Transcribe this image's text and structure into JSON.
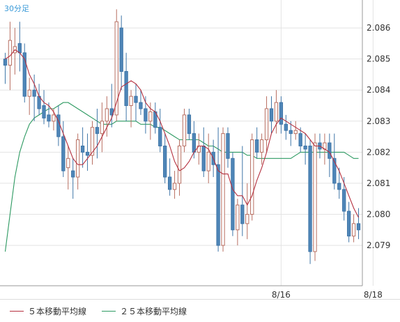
{
  "chart_data": {
    "type": "candlestick",
    "timeframe_label": "30分足",
    "y_ticks": [
      "2.086",
      "2.085",
      "2.084",
      "2.083",
      "2.082",
      "2.081",
      "2.080",
      "2.079"
    ],
    "y_tick_values": [
      2.086,
      2.085,
      2.084,
      2.083,
      2.082,
      2.081,
      2.08,
      2.079
    ],
    "ylim": [
      2.0777,
      2.0869
    ],
    "x_ticks": [
      {
        "label": "8/16",
        "index": 57
      },
      {
        "label": "8/18",
        "index": 76
      }
    ],
    "colors": {
      "up": "#c98b7f",
      "down": "#4f86b8",
      "ma5": "#b5303f",
      "ma25": "#2e9a62",
      "grid": "#e3e3e3",
      "axis": "#999999"
    },
    "legend": [
      {
        "label": "５本移動平均線",
        "color": "#b5303f"
      },
      {
        "label": "２５本移動平均線",
        "color": "#2e9a62"
      }
    ],
    "candles": [
      [
        2.085,
        2.0852,
        2.0842,
        2.0848
      ],
      [
        2.0848,
        2.0862,
        2.084,
        2.0856
      ],
      [
        2.0852,
        2.086,
        2.0845,
        2.0854
      ],
      [
        2.0855,
        2.0862,
        2.0846,
        2.0852
      ],
      [
        2.0852,
        2.0855,
        2.0836,
        2.0838
      ],
      [
        2.0838,
        2.0844,
        2.0832,
        2.084
      ],
      [
        2.084,
        2.0845,
        2.083,
        2.0838
      ],
      [
        2.0838,
        2.0842,
        2.0832,
        2.0834
      ],
      [
        2.0835,
        2.084,
        2.0829,
        2.0831
      ],
      [
        2.0832,
        2.0836,
        2.0828,
        2.083
      ],
      [
        2.083,
        2.0834,
        2.0827,
        2.0832
      ],
      [
        2.0832,
        2.0835,
        2.0822,
        2.0825
      ],
      [
        2.0825,
        2.083,
        2.0812,
        2.0814
      ],
      [
        2.0815,
        2.0822,
        2.0808,
        2.0818
      ],
      [
        2.0814,
        2.0818,
        2.0805,
        2.0812
      ],
      [
        2.0812,
        2.0826,
        2.0808,
        2.0824
      ],
      [
        2.0822,
        2.0828,
        2.0815,
        2.082
      ],
      [
        2.082,
        2.0826,
        2.0814,
        2.0819
      ],
      [
        2.0819,
        2.083,
        2.0816,
        2.0828
      ],
      [
        2.0828,
        2.0834,
        2.0818,
        2.0826
      ],
      [
        2.0826,
        2.0836,
        2.082,
        2.083
      ],
      [
        2.083,
        2.0838,
        2.0825,
        2.0834
      ],
      [
        2.0834,
        2.0842,
        2.0828,
        2.0832
      ],
      [
        2.0832,
        2.0866,
        2.083,
        2.0862
      ],
      [
        2.086,
        2.0864,
        2.084,
        2.0846
      ],
      [
        2.0846,
        2.0852,
        2.083,
        2.0835
      ],
      [
        2.0835,
        2.084,
        2.0828,
        2.0838
      ],
      [
        2.0838,
        2.0842,
        2.083,
        2.0836
      ],
      [
        2.0836,
        2.084,
        2.0832,
        2.0834
      ],
      [
        2.0834,
        2.0838,
        2.0826,
        2.083
      ],
      [
        2.083,
        2.0836,
        2.0824,
        2.0833
      ],
      [
        2.0833,
        2.0836,
        2.0826,
        2.0828
      ],
      [
        2.0828,
        2.0834,
        2.082,
        2.0822
      ],
      [
        2.0822,
        2.0826,
        2.081,
        2.0812
      ],
      [
        2.0812,
        2.0818,
        2.0806,
        2.0808
      ],
      [
        2.0808,
        2.0814,
        2.0805,
        2.081
      ],
      [
        2.081,
        2.0824,
        2.0806,
        2.0822
      ],
      [
        2.0822,
        2.0834,
        2.082,
        2.0832
      ],
      [
        2.0832,
        2.0834,
        2.0824,
        2.0826
      ],
      [
        2.0826,
        2.083,
        2.0818,
        2.082
      ],
      [
        2.082,
        2.0826,
        2.0816,
        2.0822
      ],
      [
        2.0822,
        2.0828,
        2.0812,
        2.0814
      ],
      [
        2.0814,
        2.0826,
        2.081,
        2.082
      ],
      [
        2.082,
        2.0824,
        2.0812,
        2.0816
      ],
      [
        2.0816,
        2.0828,
        2.0788,
        2.079
      ],
      [
        2.079,
        2.0828,
        2.0788,
        2.0826
      ],
      [
        2.0826,
        2.0828,
        2.0815,
        2.0818
      ],
      [
        2.0818,
        2.082,
        2.0793,
        2.0795
      ],
      [
        2.0795,
        2.0805,
        2.079,
        2.0803
      ],
      [
        2.0803,
        2.0822,
        2.0793,
        2.0797
      ],
      [
        2.0797,
        2.081,
        2.0792,
        2.08
      ],
      [
        2.08,
        2.0826,
        2.0798,
        2.0824
      ],
      [
        2.0824,
        2.0828,
        2.0818,
        2.082
      ],
      [
        2.082,
        2.0826,
        2.0816,
        2.0824
      ],
      [
        2.0824,
        2.0838,
        2.082,
        2.0834
      ],
      [
        2.0834,
        2.0838,
        2.0826,
        2.083
      ],
      [
        2.083,
        2.084,
        2.0826,
        2.0836
      ],
      [
        2.0836,
        2.0838,
        2.0826,
        2.0829
      ],
      [
        2.0829,
        2.0832,
        2.0824,
        2.0827
      ],
      [
        2.0827,
        2.083,
        2.0822,
        2.0826
      ],
      [
        2.0826,
        2.083,
        2.0824,
        2.0827
      ],
      [
        2.0826,
        2.0828,
        2.082,
        2.0822
      ],
      [
        2.0822,
        2.0826,
        2.0816,
        2.0821
      ],
      [
        2.0822,
        2.0824,
        2.0784,
        2.0788
      ],
      [
        2.0788,
        2.0826,
        2.0785,
        2.0823
      ],
      [
        2.0823,
        2.0826,
        2.0818,
        2.0821
      ],
      [
        2.0821,
        2.0826,
        2.0816,
        2.0823
      ],
      [
        2.0823,
        2.0826,
        2.0812,
        2.0818
      ],
      [
        2.0818,
        2.0826,
        2.0808,
        2.081
      ],
      [
        2.081,
        2.0815,
        2.0805,
        2.0808
      ],
      [
        2.0808,
        2.0812,
        2.0798,
        2.0801
      ],
      [
        2.0801,
        2.0804,
        2.0791,
        2.0793
      ],
      [
        2.0793,
        2.08,
        2.0791,
        2.0797
      ],
      [
        2.0797,
        2.0802,
        2.0792,
        2.0795
      ]
    ],
    "ma5": [
      2.085,
      2.0851,
      2.0853,
      2.0852,
      2.085,
      2.0845,
      2.0842,
      2.0838,
      2.0836,
      2.0835,
      2.0833,
      2.083,
      2.0826,
      2.0822,
      2.0818,
      2.0816,
      2.0816,
      2.0818,
      2.082,
      2.0822,
      2.0825,
      2.0828,
      2.0831,
      2.0836,
      2.0841,
      2.0842,
      2.0843,
      2.0842,
      2.084,
      2.0836,
      2.0834,
      2.0833,
      2.083,
      2.0826,
      2.0822,
      2.0817,
      2.0814,
      2.0815,
      2.0817,
      2.082,
      2.0822,
      2.0822,
      2.0821,
      2.0818,
      2.0814,
      2.0813,
      2.0813,
      2.0808,
      2.0806,
      2.0806,
      2.0803,
      2.0806,
      2.0811,
      2.0815,
      2.082,
      2.0826,
      2.0829,
      2.0831,
      2.083,
      2.0829,
      2.0828,
      2.0827,
      2.0826,
      2.0824,
      2.0822,
      2.0822,
      2.0821,
      2.082,
      2.0817,
      2.0814,
      2.081,
      2.0806,
      2.0802,
      2.0799
    ],
    "ma25": [
      2.0788,
      2.08,
      2.0812,
      2.082,
      2.0825,
      2.0829,
      2.0831,
      2.0832,
      2.0833,
      2.0834,
      2.0834,
      2.0835,
      2.0836,
      2.0836,
      2.0835,
      2.0834,
      2.0833,
      2.0832,
      2.0831,
      2.083,
      2.0829,
      2.0829,
      2.0829,
      2.083,
      2.083,
      2.083,
      2.083,
      2.083,
      2.0829,
      2.0829,
      2.0829,
      2.0828,
      2.0828,
      2.0827,
      2.0826,
      2.0825,
      2.0824,
      2.0824,
      2.0824,
      2.0824,
      2.0824,
      2.0823,
      2.0822,
      2.0822,
      2.0821,
      2.082,
      2.082,
      2.082,
      2.082,
      2.082,
      2.0819,
      2.0819,
      2.0818,
      2.0818,
      2.0818,
      2.0818,
      2.0818,
      2.0818,
      2.0818,
      2.0818,
      2.0819,
      2.082,
      2.082,
      2.082,
      2.082,
      2.082,
      2.082,
      2.082,
      2.082,
      2.082,
      2.082,
      2.0819,
      2.0818,
      2.0818
    ]
  }
}
